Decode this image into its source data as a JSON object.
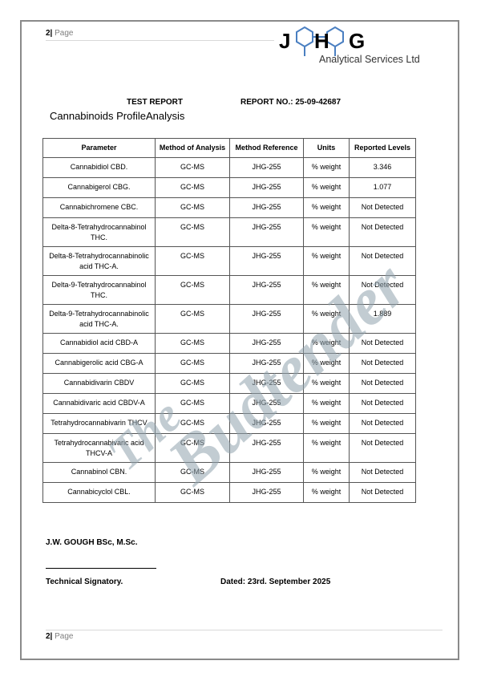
{
  "header": {
    "page_number": "2|",
    "page_label": "Page",
    "logo_letters": [
      "J",
      "H",
      "G"
    ],
    "logo_subtitle": "Analytical Services Ltd"
  },
  "report": {
    "title": "TEST REPORT",
    "report_no": "REPORT NO.: 25-09-42687",
    "subtitle": "Cannabinoids ProfileAnalysis"
  },
  "table": {
    "columns": [
      "Parameter",
      "Method of Analysis",
      "Method Reference",
      "Units",
      "Reported Levels"
    ],
    "rows": [
      [
        "Cannabidiol CBD.",
        "GC-MS",
        "JHG-255",
        "% weight",
        "3.346"
      ],
      [
        "Cannabigerol CBG.",
        "GC-MS",
        "JHG-255",
        "% weight",
        "1.077"
      ],
      [
        "Cannabichromene CBC.",
        "GC-MS",
        "JHG-255",
        "% weight",
        "Not Detected"
      ],
      [
        "Delta-8-Tetrahydrocannabinol THC.",
        "GC-MS",
        "JHG-255",
        "% weight",
        "Not Detected"
      ],
      [
        "Delta-8-Tetrahydrocannabinolic acid THC-A.",
        "GC-MS",
        "JHG-255",
        "% weight",
        "Not Detected"
      ],
      [
        "Delta-9-Tetrahydrocannabinol THC.",
        "GC-MS",
        "JHG-255",
        "% weight",
        "Not Detected"
      ],
      [
        "Delta-9-Tetrahydrocannabinolic acid THC-A.",
        "GC-MS",
        "JHG-255",
        "% weight",
        "1.889"
      ],
      [
        "Cannabidiol acid CBD-A",
        "GC-MS",
        "JHG-255",
        "% weight",
        "Not Detected"
      ],
      [
        "Cannabigerolic acid CBG-A",
        "GC-MS",
        "JHG-255",
        "% weight",
        "Not Detected"
      ],
      [
        "Cannabidivarin CBDV",
        "GC-MS",
        "JHG-255",
        "% weight",
        "Not Detected"
      ],
      [
        "Cannabidivaric acid CBDV-A",
        "GC-MS",
        "JHG-255",
        "% weight",
        "Not Detected"
      ],
      [
        "Tetrahydrocannabivarin THCV",
        "GC-MS",
        "JHG-255",
        "% weight",
        "Not Detected"
      ],
      [
        "Tetrahydrocannabivaric acid THCV-A",
        "GC-MS",
        "JHG-255",
        "% weight",
        "Not Detected"
      ],
      [
        "Cannabinol CBN.",
        "GC-MS",
        "JHG-255",
        "% weight",
        "Not Detected"
      ],
      [
        "Cannabicyclol CBL.",
        "GC-MS",
        "JHG-255",
        "% weight",
        "Not Detected"
      ]
    ]
  },
  "signatory": {
    "name": "J.W. GOUGH BSc, M.Sc.",
    "role": "Technical Signatory.",
    "dated": "Dated: 23rd. September 2025"
  },
  "watermark": {
    "line1": "The",
    "line2": "Budtender"
  }
}
